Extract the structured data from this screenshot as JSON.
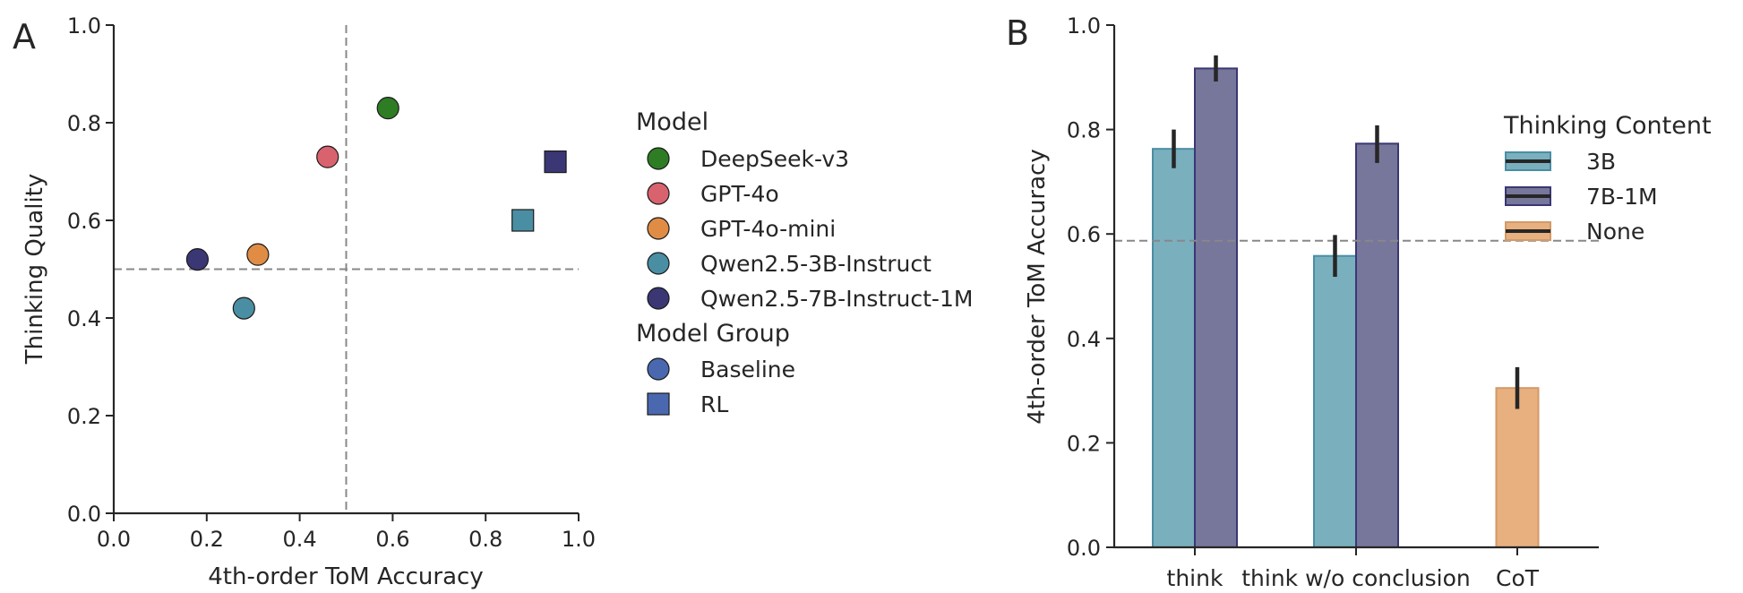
{
  "panels": {
    "a_letter": "A",
    "b_letter": "B"
  },
  "chart_data": [
    {
      "type": "scatter",
      "xlabel": "4th-order ToM Accuracy",
      "ylabel": "Thinking Quality",
      "xlim": [
        0,
        1
      ],
      "ylim": [
        0,
        1
      ],
      "xticks": [
        "0.0",
        "0.2",
        "0.4",
        "0.6",
        "0.8",
        "1.0"
      ],
      "yticks": [
        "0.0",
        "0.2",
        "0.4",
        "0.6",
        "0.8",
        "1.0"
      ],
      "reference_lines": {
        "x": 0.5,
        "y": 0.5
      },
      "grid": false,
      "legend_position": "right-outside",
      "legend": {
        "model_title": "Model",
        "models": [
          {
            "name": "DeepSeek-v3",
            "color": "#2e7d24"
          },
          {
            "name": "GPT-4o",
            "color": "#d9626f"
          },
          {
            "name": "GPT-4o-mini",
            "color": "#e08c45"
          },
          {
            "name": "Qwen2.5-3B-Instruct",
            "color": "#4a8ea3"
          },
          {
            "name": "Qwen2.5-7B-Instruct-1M",
            "color": "#3a3774"
          }
        ],
        "group_title": "Model Group",
        "groups": [
          {
            "name": "Baseline",
            "marker": "circle",
            "color": "#4a68b0"
          },
          {
            "name": "RL",
            "marker": "square",
            "color": "#4a68b0"
          }
        ]
      },
      "points": [
        {
          "model": "DeepSeek-v3",
          "group": "Baseline",
          "x": 0.59,
          "y": 0.83
        },
        {
          "model": "GPT-4o",
          "group": "Baseline",
          "x": 0.46,
          "y": 0.73
        },
        {
          "model": "GPT-4o-mini",
          "group": "Baseline",
          "x": 0.31,
          "y": 0.53
        },
        {
          "model": "Qwen2.5-3B-Instruct",
          "group": "Baseline",
          "x": 0.28,
          "y": 0.42
        },
        {
          "model": "Qwen2.5-7B-Instruct-1M",
          "group": "Baseline",
          "x": 0.18,
          "y": 0.52
        },
        {
          "model": "Qwen2.5-3B-Instruct",
          "group": "RL",
          "x": 0.88,
          "y": 0.6
        },
        {
          "model": "Qwen2.5-7B-Instruct-1M",
          "group": "RL",
          "x": 0.95,
          "y": 0.72
        }
      ]
    },
    {
      "type": "bar",
      "xlabel": "",
      "ylabel": "4th-order ToM Accuracy",
      "ylim": [
        0,
        1
      ],
      "yticks": [
        "0.0",
        "0.2",
        "0.4",
        "0.6",
        "0.8",
        "1.0"
      ],
      "categories": [
        "think",
        "think w/o conclusion",
        "CoT"
      ],
      "reference_line_y": 0.587,
      "grid": false,
      "legend_title": "Thinking Content",
      "legend_position": "top-right",
      "series": [
        {
          "name": "3B",
          "color": "#7aafbe",
          "edge": "#4a8ea3",
          "values": [
            0.763,
            0.558,
            null
          ],
          "errors": [
            [
              0.726,
              0.8
            ],
            [
              0.518,
              0.598
            ],
            null
          ]
        },
        {
          "name": "7B-1M",
          "color": "#77769b",
          "edge": "#3a3774",
          "values": [
            0.917,
            0.773,
            null
          ],
          "errors": [
            [
              0.892,
              0.942
            ],
            [
              0.736,
              0.808
            ],
            null
          ]
        },
        {
          "name": "None",
          "color": "#e8b07e",
          "edge": "#d29a68",
          "values": [
            null,
            null,
            0.305
          ],
          "errors": [
            null,
            null,
            [
              0.265,
              0.345
            ]
          ]
        }
      ]
    }
  ]
}
